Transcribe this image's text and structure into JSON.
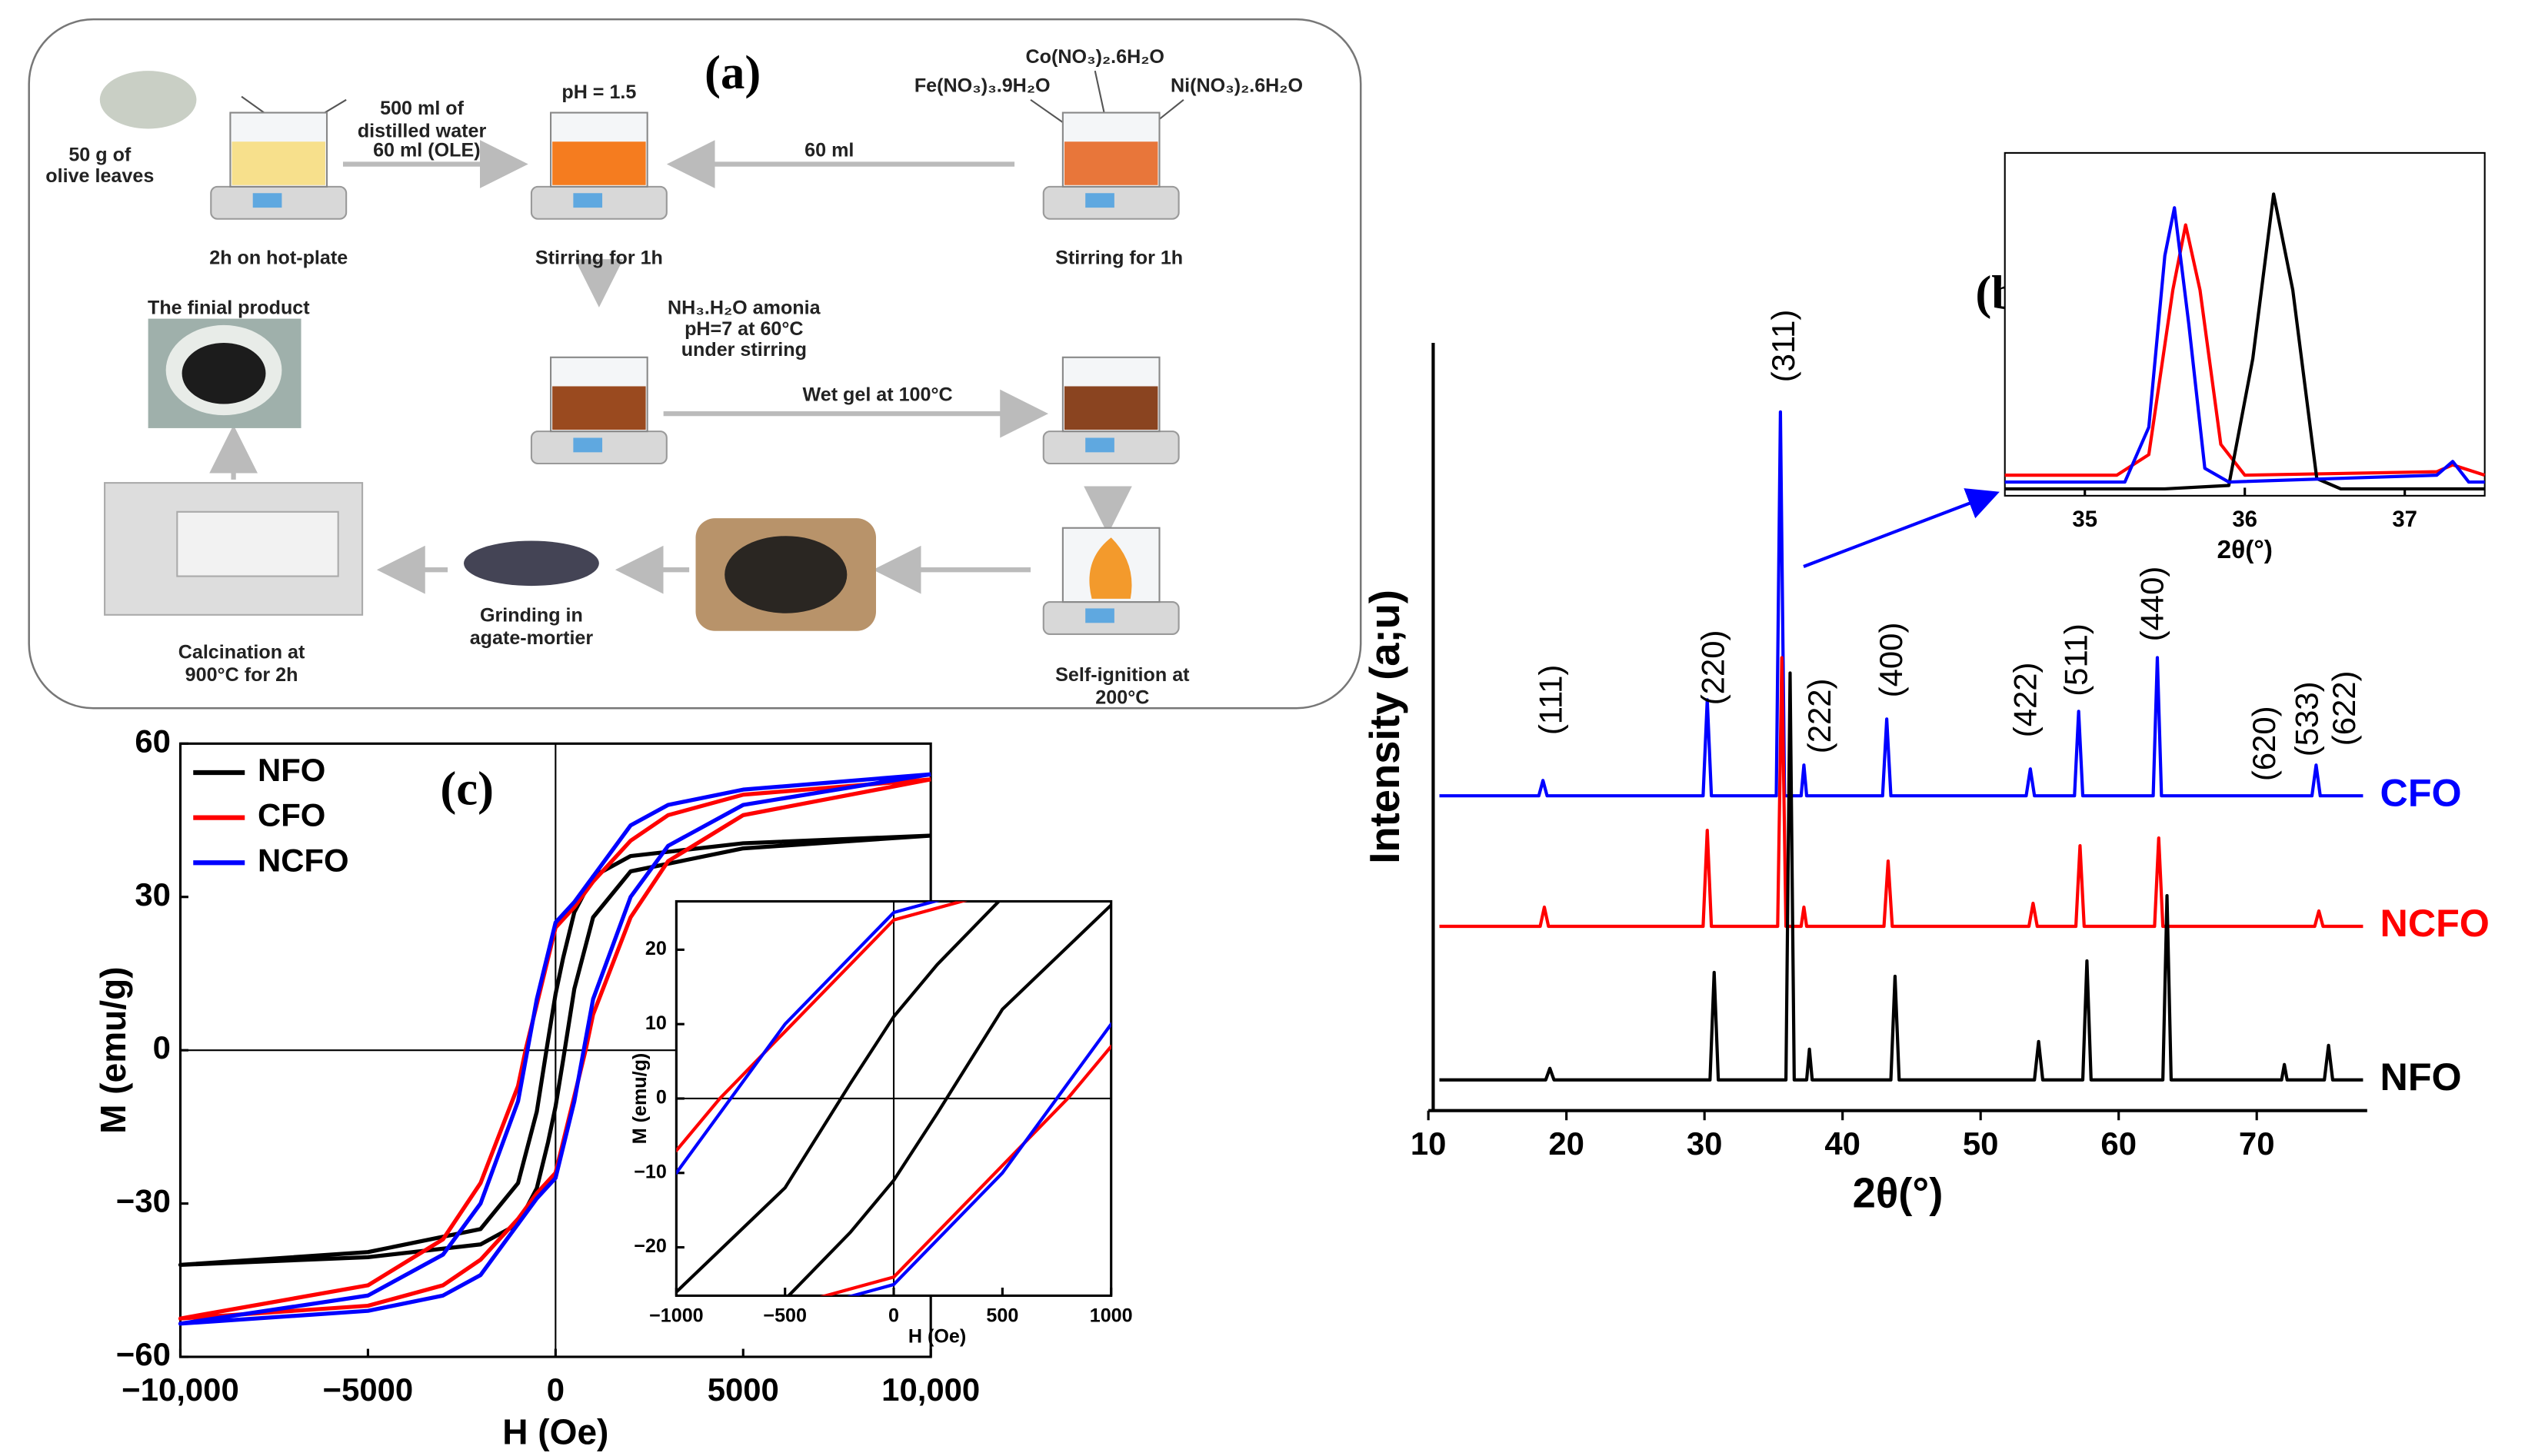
{
  "diagram": {
    "panel": "(a)",
    "texts": [
      "500 ml of",
      "distilled water",
      "50 g of",
      "olive leaves",
      "60 ml (OLE)",
      "2h on hot-plate",
      "pH = 1.5",
      "Stirring for 1h",
      "60 ml",
      "Co(NO₃)₂.6H₂O",
      "Fe(NO₃)₃.9H₂O",
      "Ni(NO₃)₂.6H₂O",
      "Stirring for 1h",
      "NH₃.H₂O amonia",
      "pH=7 at 60°C",
      "under stirring",
      "The finial product",
      "Wet gel at 100°C",
      "Grinding in",
      "agate-mortier",
      "Calcination at",
      "900°C for 2h",
      "Self-ignition at",
      "200°C"
    ]
  },
  "chart_data": [
    {
      "type": "line",
      "panel": "(b)",
      "xlabel": "2θ(°)",
      "ylabel": "Intensity (a;u)",
      "xlim": [
        10,
        78
      ],
      "xticks": [
        10,
        20,
        30,
        40,
        50,
        60,
        70
      ],
      "ylim": [
        0,
        100
      ],
      "series": [
        {
          "name": "CFO",
          "color": "#0000ff",
          "x": [
            10.8,
            18.0,
            18.3,
            18.6,
            29.9,
            30.2,
            30.5,
            35.2,
            35.5,
            35.8,
            37.0,
            37.2,
            37.4,
            42.9,
            43.2,
            43.5,
            53.3,
            53.6,
            53.9,
            56.8,
            57.1,
            57.4,
            62.5,
            62.8,
            63.1,
            74.0,
            74.3,
            74.6,
            77.7
          ],
          "values": [
            41,
            41,
            43,
            41,
            41,
            53.5,
            41,
            41,
            91,
            41,
            41,
            45,
            41,
            41,
            51,
            41,
            41,
            44.5,
            41,
            41,
            52,
            41,
            41,
            59,
            41,
            41,
            45,
            41,
            41
          ]
        },
        {
          "name": "NCFO",
          "color": "#ff0000",
          "x": [
            10.8,
            18.1,
            18.4,
            18.7,
            29.9,
            30.2,
            30.5,
            35.3,
            35.6,
            35.9,
            37.0,
            37.2,
            37.4,
            43.0,
            43.3,
            43.6,
            53.5,
            53.8,
            54.1,
            56.9,
            57.2,
            57.5,
            62.6,
            62.9,
            63.2,
            74.2,
            74.5,
            74.8,
            77.7
          ],
          "values": [
            24,
            24,
            26.5,
            24,
            24,
            36.5,
            24,
            24,
            59,
            24,
            24,
            26.5,
            24,
            24,
            32.5,
            24,
            24,
            27,
            24,
            24,
            34.5,
            24,
            24,
            35.5,
            24,
            24,
            26,
            24,
            24
          ]
        },
        {
          "name": "NFO",
          "color": "#000000",
          "x": [
            10.8,
            18.5,
            18.8,
            19.1,
            30.4,
            30.7,
            31.0,
            35.9,
            36.2,
            36.5,
            37.4,
            37.6,
            37.8,
            43.5,
            43.8,
            44.1,
            53.9,
            54.2,
            54.5,
            57.4,
            57.7,
            58.0,
            63.2,
            63.5,
            63.8,
            71.8,
            72.0,
            72.2,
            74.9,
            75.2,
            75.5,
            77.7
          ],
          "values": [
            4,
            4,
            5.5,
            4,
            4,
            18,
            4,
            4,
            57,
            4,
            4,
            8,
            4,
            4,
            17.5,
            4,
            4,
            9,
            4,
            4,
            19.5,
            4,
            4,
            28,
            4,
            4,
            6,
            4,
            4,
            8.5,
            4,
            4
          ]
        }
      ],
      "annotations": [
        {
          "text": "(111)",
          "x": 19.05,
          "y": 53.5
        },
        {
          "text": "(220)",
          "x": 30.8,
          "y": 57.7
        },
        {
          "text": "(311)",
          "x": 35.9,
          "y": 99.6
        },
        {
          "text": "(222)",
          "x": 38.5,
          "y": 51.4
        },
        {
          "text": "(400)",
          "x": 43.7,
          "y": 58.7
        },
        {
          "text": "(422)",
          "x": 53.4,
          "y": 53.5
        },
        {
          "text": "(511)",
          "x": 57.1,
          "y": 58.7
        },
        {
          "text": "(440)",
          "x": 62.6,
          "y": 66
        },
        {
          "text": "(620)",
          "x": 70.7,
          "y": 47.8
        },
        {
          "text": "(533)",
          "x": 73.8,
          "y": 51
        },
        {
          "text": "(622)",
          "x": 76.5,
          "y": 52.4
        }
      ]
    },
    {
      "type": "line",
      "xlabel": "2θ(°)",
      "xlim": [
        34.5,
        37.5
      ],
      "xticks": [
        35,
        36,
        37
      ],
      "ylim": [
        0,
        100
      ],
      "series": [
        {
          "color": "#ff0000",
          "x": [
            34.5,
            35.2,
            35.4,
            35.55,
            35.63,
            35.72,
            35.85,
            36.0,
            37.2,
            37.3,
            37.5
          ],
          "values": [
            6,
            6,
            12,
            60,
            79,
            60,
            15,
            6,
            7,
            9,
            6
          ]
        },
        {
          "color": "#000000",
          "x": [
            34.5,
            35.5,
            35.9,
            36.05,
            36.18,
            36.3,
            36.45,
            36.6,
            37.5
          ],
          "values": [
            2,
            2,
            3,
            40,
            88,
            60,
            5,
            2,
            2
          ]
        },
        {
          "color": "#0000ff",
          "x": [
            34.5,
            35.25,
            35.4,
            35.5,
            35.56,
            35.65,
            35.75,
            35.9,
            37.2,
            37.3,
            37.4,
            37.5
          ],
          "values": [
            4,
            4,
            20,
            70,
            84,
            50,
            8,
            4,
            6,
            10,
            4,
            4
          ]
        }
      ]
    },
    {
      "type": "line",
      "panel": "(c)",
      "xlabel": "H (Oe)",
      "ylabel": "M (emu/g)",
      "xlim": [
        -10000,
        10000
      ],
      "xticks": [
        {
          "value": -10000,
          "label": "−10,000"
        },
        {
          "value": -5000,
          "label": "−5000"
        },
        0,
        5000,
        {
          "value": 10000,
          "label": "10,000"
        }
      ],
      "ylim": [
        -60,
        60
      ],
      "yticks": [
        {
          "value": -60,
          "label": "−60"
        },
        {
          "value": -30,
          "label": "−30"
        },
        0,
        30,
        60
      ],
      "legend": "upper left",
      "zero_lines": true,
      "series": [
        {
          "name": "NFO",
          "color": "#000000",
          "x": [
            10000,
            5000,
            2000,
            1000,
            500,
            200,
            0,
            -200,
            -500,
            -1000,
            -2000,
            -5000,
            -10000,
            -5000,
            -2000,
            -1000,
            -500,
            -200,
            0,
            200,
            500,
            1000,
            2000,
            5000,
            10000
          ],
          "values": [
            42,
            40.5,
            38,
            34,
            27,
            18,
            11,
            2,
            -12,
            -26,
            -35,
            -39.5,
            -42,
            -40.5,
            -38,
            -34,
            -27,
            -18,
            -11,
            -2,
            12,
            26,
            35,
            39.5,
            42
          ]
        },
        {
          "name": "CFO",
          "color": "#ff0000",
          "x": [
            10000,
            5000,
            3000,
            2000,
            1000,
            500,
            0,
            -500,
            -800,
            -1000,
            -2000,
            -3000,
            -5000,
            -10000,
            -5000,
            -3000,
            -2000,
            -1000,
            -500,
            0,
            500,
            800,
            1000,
            2000,
            3000,
            5000,
            10000
          ],
          "values": [
            53,
            50,
            46,
            41,
            33,
            28,
            24,
            9,
            0,
            -7,
            -26,
            -37,
            -46,
            -52.5,
            -50,
            -46,
            -41,
            -33,
            -28,
            -24,
            -9,
            0,
            7,
            26,
            37,
            46,
            53
          ]
        },
        {
          "name": "NCFO",
          "color": "#0000ff",
          "x": [
            10000,
            5000,
            3000,
            2000,
            1000,
            500,
            0,
            -500,
            -1000,
            -2000,
            -3000,
            -5000,
            -10000,
            -5000,
            -3000,
            -2000,
            -1000,
            -500,
            0,
            500,
            1000,
            2000,
            3000,
            5000,
            10000
          ],
          "values": [
            54,
            51,
            48,
            44,
            34,
            29,
            25,
            10,
            -10,
            -30,
            -40,
            -48,
            -53.5,
            -51,
            -48,
            -44,
            -34,
            -29,
            -25,
            -10,
            10,
            30,
            40,
            48,
            54
          ]
        }
      ]
    },
    {
      "type": "line",
      "xlabel": "H (Oe)",
      "ylabel": "M (emu/g)",
      "xlim": [
        -1000,
        1000
      ],
      "xticks": [
        {
          "value": -1000,
          "label": "−1000"
        },
        {
          "value": -500,
          "label": "−500"
        },
        0,
        500,
        1000
      ],
      "ylim": [
        -26.5,
        26.5
      ],
      "yticks": [
        {
          "value": -20,
          "label": "−20"
        },
        {
          "value": -10,
          "label": "−10"
        },
        0,
        10,
        20
      ],
      "zero_lines": true
    }
  ]
}
